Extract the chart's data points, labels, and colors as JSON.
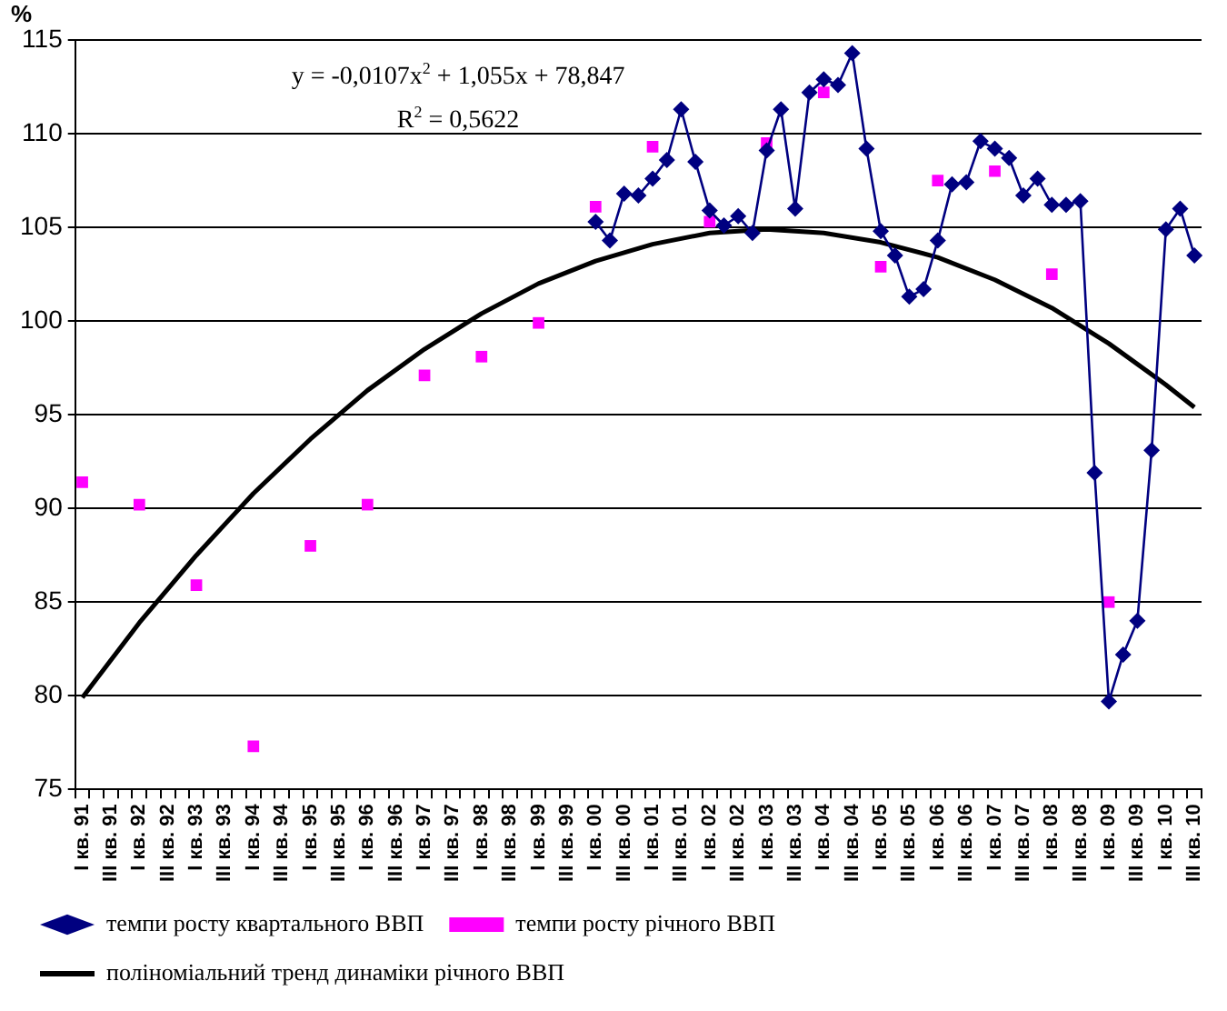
{
  "chart_data": {
    "type": "line",
    "ylabel": "%",
    "categories": [
      "I кв. 91",
      null,
      "III кв. 91",
      null,
      "I кв. 92",
      null,
      "III кв. 92",
      null,
      "I кв. 93",
      null,
      "III кв. 93",
      null,
      "I кв. 94",
      null,
      "III кв. 94",
      null,
      "I кв. 95",
      null,
      "III кв. 95",
      null,
      "I кв. 96",
      null,
      "III кв. 96",
      null,
      "I кв. 97",
      null,
      "III кв. 97",
      null,
      "I кв. 98",
      null,
      "III кв. 98",
      null,
      "I кв. 99",
      null,
      "III кв. 99",
      null,
      "I кв. 00",
      null,
      "III кв. 00",
      null,
      "I кв. 01",
      null,
      "III кв. 01",
      null,
      "I кв. 02",
      null,
      "III кв. 02",
      null,
      "I кв. 03",
      null,
      "III кв. 03",
      null,
      "I кв. 04",
      null,
      "III кв. 04",
      null,
      "I кв. 05",
      null,
      "III кв. 05",
      null,
      "I кв. 06",
      null,
      "III кв. 06",
      null,
      "I кв. 07",
      null,
      "III кв. 07",
      null,
      "I кв. 08",
      null,
      "III кв. 08",
      null,
      "I кв. 09",
      null,
      "III кв. 09",
      null,
      "I кв. 10",
      null,
      "III кв. 10"
    ],
    "series": [
      {
        "name": "темпи росту квартального ВВП",
        "type": "line",
        "marker": "diamond",
        "color": "#000080",
        "values": [
          null,
          null,
          null,
          null,
          null,
          null,
          null,
          null,
          null,
          null,
          null,
          null,
          null,
          null,
          null,
          null,
          null,
          null,
          null,
          null,
          null,
          null,
          null,
          null,
          null,
          null,
          null,
          null,
          null,
          null,
          null,
          null,
          null,
          null,
          null,
          null,
          105.3,
          104.3,
          106.8,
          106.7,
          107.6,
          108.6,
          111.3,
          108.5,
          105.9,
          105.1,
          105.6,
          104.7,
          109.1,
          111.3,
          106.0,
          112.2,
          112.9,
          112.6,
          114.3,
          109.2,
          104.8,
          103.5,
          101.3,
          101.7,
          104.3,
          107.3,
          107.4,
          109.6,
          109.2,
          108.7,
          106.7,
          107.6,
          106.2,
          106.2,
          106.4,
          91.9,
          79.7,
          82.2,
          84.0,
          93.1,
          104.9,
          106.0,
          103.5
        ]
      },
      {
        "name": "темпи росту річного ВВП",
        "type": "scatter",
        "marker": "square",
        "color": "#ff00ff",
        "values": [
          91.4,
          null,
          null,
          null,
          90.2,
          null,
          null,
          null,
          85.9,
          null,
          null,
          null,
          77.3,
          null,
          null,
          null,
          88.0,
          null,
          null,
          null,
          90.2,
          null,
          null,
          null,
          97.1,
          null,
          null,
          null,
          98.1,
          null,
          null,
          null,
          99.9,
          null,
          null,
          null,
          106.1,
          null,
          null,
          null,
          109.3,
          null,
          null,
          null,
          105.3,
          null,
          null,
          null,
          109.5,
          null,
          null,
          null,
          112.2,
          null,
          null,
          null,
          102.9,
          null,
          null,
          null,
          107.5,
          null,
          null,
          null,
          108.0,
          null,
          null,
          null,
          102.5,
          null,
          null,
          null,
          85.0,
          null,
          null,
          null,
          null,
          null,
          null
        ]
      },
      {
        "name": "поліноміальний тренд динаміки річного ВВП",
        "type": "line",
        "marker": "none",
        "color": "#000000",
        "values": [
          79.9,
          null,
          null,
          null,
          83.9,
          null,
          null,
          null,
          87.5,
          null,
          null,
          null,
          90.8,
          null,
          null,
          null,
          93.7,
          null,
          null,
          null,
          96.3,
          null,
          null,
          null,
          98.5,
          null,
          null,
          null,
          100.4,
          null,
          null,
          null,
          102.0,
          null,
          null,
          null,
          103.2,
          null,
          null,
          null,
          104.1,
          null,
          null,
          null,
          104.7,
          null,
          null,
          null,
          104.9,
          null,
          null,
          null,
          104.7,
          null,
          null,
          null,
          104.2,
          null,
          null,
          null,
          103.4,
          null,
          null,
          null,
          102.2,
          null,
          null,
          null,
          100.7,
          null,
          null,
          null,
          98.8,
          null,
          null,
          null,
          96.6,
          null,
          95.4
        ]
      }
    ],
    "ylim": [
      75,
      115
    ],
    "yticks": [
      75,
      80,
      85,
      90,
      95,
      100,
      105,
      110,
      115
    ],
    "grid": "y",
    "legend": "bottom",
    "annotations": [
      "y = -0,0107x$^{2}$ + 1,055x + 78,847",
      "R$^{2}$ = 0,5622"
    ]
  }
}
